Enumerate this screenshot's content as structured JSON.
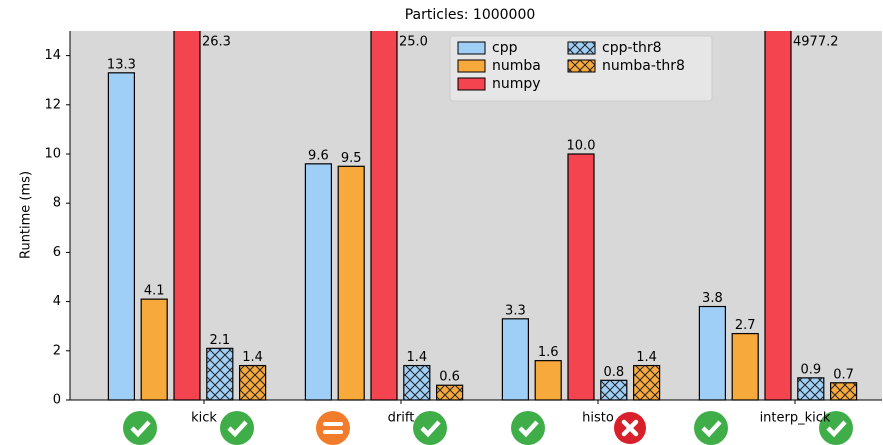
{
  "chart_data": {
    "type": "bar",
    "title": "Particles: 1000000",
    "y_label": "Runtime (ms)",
    "categories": [
      "kick",
      "drift",
      "histo",
      "interp_kick"
    ],
    "series": [
      {
        "name": "cpp",
        "color": "#9fcff7",
        "hatch": false,
        "values": [
          13.3,
          9.6,
          3.3,
          3.8
        ],
        "value_labels": [
          "13.3",
          "9.6",
          "3.3",
          "3.8"
        ]
      },
      {
        "name": "numba",
        "color": "#f8a93c",
        "hatch": false,
        "values": [
          4.1,
          9.5,
          1.6,
          2.7
        ],
        "value_labels": [
          "4.1",
          "9.5",
          "1.6",
          "2.7"
        ]
      },
      {
        "name": "numpy",
        "color": "#f4444f",
        "hatch": false,
        "values": [
          26.3,
          25.0,
          10.0,
          4977.2
        ],
        "value_labels": [
          "26.3",
          "25.0",
          "10.0",
          "4977.2"
        ]
      },
      {
        "name": "cpp-thr8",
        "color": "#9fcff7",
        "hatch": true,
        "values": [
          2.1,
          1.4,
          0.8,
          0.9
        ],
        "value_labels": [
          "2.1",
          "1.4",
          "0.8",
          "0.9"
        ]
      },
      {
        "name": "numba-thr8",
        "color": "#f8a93c",
        "hatch": true,
        "values": [
          1.4,
          0.6,
          1.4,
          0.7
        ],
        "value_labels": [
          "1.4",
          "0.6",
          "1.4",
          "0.7"
        ]
      }
    ],
    "ylim": [
      0,
      15
    ],
    "yticks": [
      0,
      2,
      4,
      6,
      8,
      10,
      12,
      14
    ],
    "grid": false,
    "legend": "upper center"
  }
}
